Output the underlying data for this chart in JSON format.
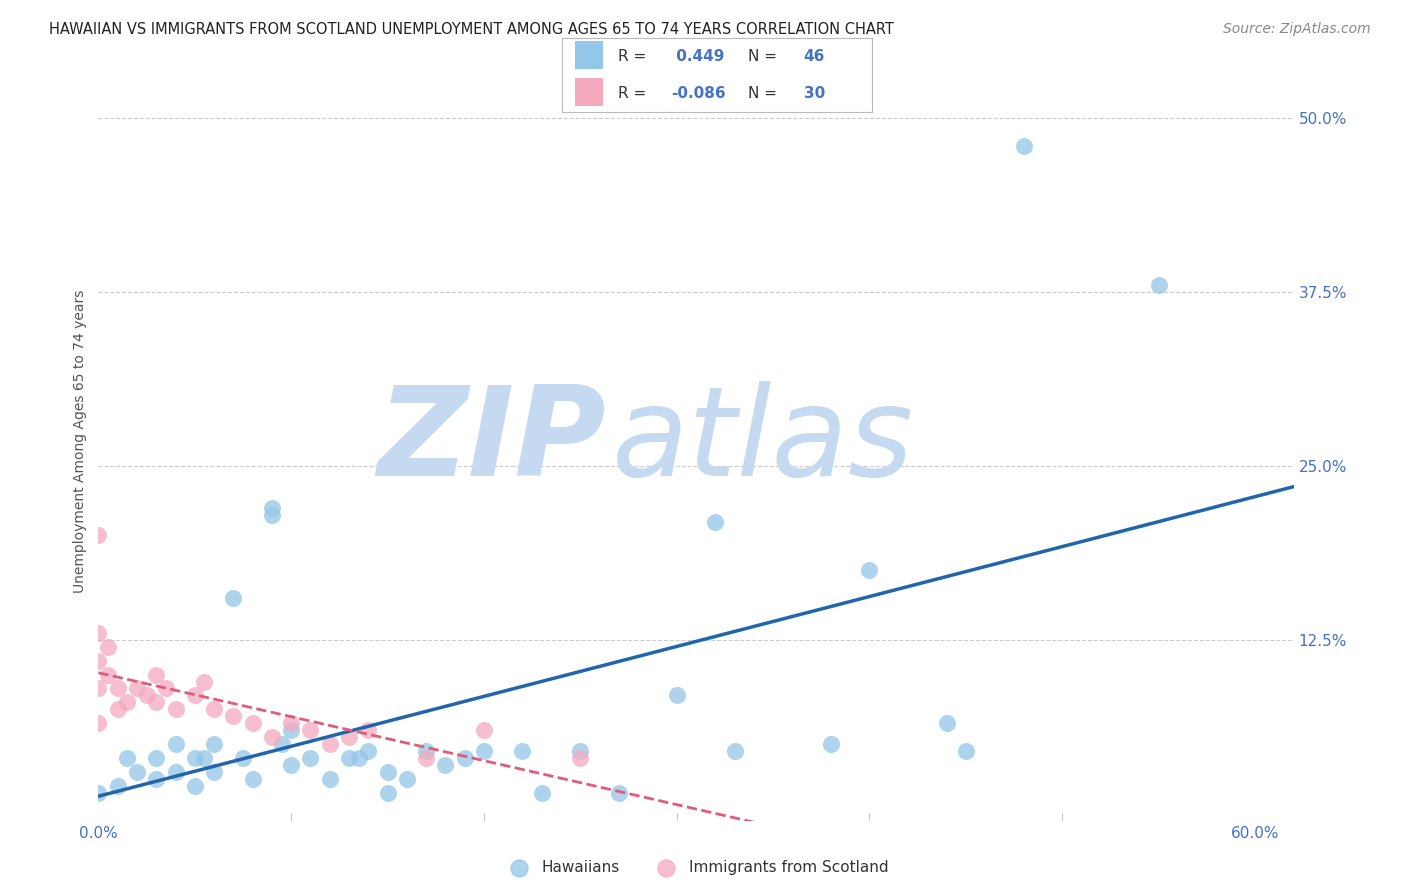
{
  "title": "HAWAIIAN VS IMMIGRANTS FROM SCOTLAND UNEMPLOYMENT AMONG AGES 65 TO 74 YEARS CORRELATION CHART",
  "source": "Source: ZipAtlas.com",
  "ylabel": "Unemployment Among Ages 65 to 74 years",
  "xlim": [
    0.0,
    0.62
  ],
  "ylim": [
    -0.005,
    0.54
  ],
  "xticks": [
    0.0,
    0.1,
    0.2,
    0.3,
    0.4,
    0.5,
    0.6
  ],
  "xticklabels": [
    "0.0%",
    "",
    "",
    "",
    "",
    "",
    "60.0%"
  ],
  "yticks": [
    0.125,
    0.25,
    0.375,
    0.5
  ],
  "yticklabels": [
    "12.5%",
    "25.0%",
    "37.5%",
    "50.0%"
  ],
  "blue_color": "#93c6e8",
  "pink_color": "#f4a9be",
  "blue_line_color": "#2166ac",
  "pink_line_color": "#e05c7a",
  "watermark_zip_color": "#c5d9f0",
  "watermark_atlas_color": "#c5d9f0",
  "hawaiians_x": [
    0.0,
    0.01,
    0.015,
    0.02,
    0.03,
    0.03,
    0.04,
    0.04,
    0.05,
    0.05,
    0.055,
    0.06,
    0.06,
    0.07,
    0.075,
    0.08,
    0.09,
    0.09,
    0.095,
    0.1,
    0.1,
    0.11,
    0.12,
    0.13,
    0.135,
    0.14,
    0.15,
    0.15,
    0.16,
    0.17,
    0.18,
    0.19,
    0.2,
    0.22,
    0.23,
    0.25,
    0.27,
    0.3,
    0.32,
    0.33,
    0.38,
    0.4,
    0.44,
    0.45,
    0.48,
    0.55
  ],
  "hawaiians_y": [
    0.015,
    0.02,
    0.04,
    0.03,
    0.04,
    0.025,
    0.05,
    0.03,
    0.02,
    0.04,
    0.04,
    0.05,
    0.03,
    0.155,
    0.04,
    0.025,
    0.22,
    0.215,
    0.05,
    0.06,
    0.035,
    0.04,
    0.025,
    0.04,
    0.04,
    0.045,
    0.03,
    0.015,
    0.025,
    0.045,
    0.035,
    0.04,
    0.045,
    0.045,
    0.015,
    0.045,
    0.015,
    0.085,
    0.21,
    0.045,
    0.05,
    0.175,
    0.065,
    0.045,
    0.48,
    0.38
  ],
  "scotland_x": [
    0.0,
    0.0,
    0.0,
    0.0,
    0.0,
    0.005,
    0.005,
    0.01,
    0.01,
    0.015,
    0.02,
    0.025,
    0.03,
    0.03,
    0.035,
    0.04,
    0.05,
    0.055,
    0.06,
    0.07,
    0.08,
    0.09,
    0.1,
    0.11,
    0.12,
    0.13,
    0.14,
    0.17,
    0.2,
    0.25
  ],
  "scotland_y": [
    0.2,
    0.13,
    0.11,
    0.09,
    0.065,
    0.12,
    0.1,
    0.09,
    0.075,
    0.08,
    0.09,
    0.085,
    0.1,
    0.08,
    0.09,
    0.075,
    0.085,
    0.095,
    0.075,
    0.07,
    0.065,
    0.055,
    0.065,
    0.06,
    0.05,
    0.055,
    0.06,
    0.04,
    0.06,
    0.04
  ],
  "grid_color": "#cccccc",
  "background_color": "#ffffff",
  "title_fontsize": 10.5,
  "axis_label_fontsize": 10,
  "tick_fontsize": 11,
  "legend_fontsize": 11,
  "source_fontsize": 10
}
